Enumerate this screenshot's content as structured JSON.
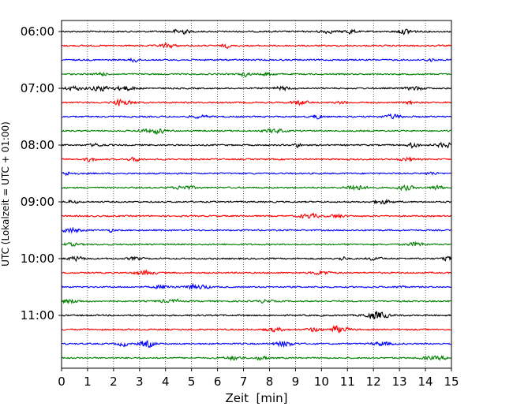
{
  "chart_data": {
    "type": "line",
    "xlabel": "Zeit  [min]",
    "ylabel": "UTC (Lokalzeit = UTC + 01:00)",
    "xlim": [
      0,
      15
    ],
    "x_ticks": [
      "0",
      "1",
      "2",
      "3",
      "4",
      "5",
      "6",
      "7",
      "8",
      "9",
      "10",
      "11",
      "12",
      "13",
      "14",
      "15"
    ],
    "y_ticks": [
      "06:00",
      "07:00",
      "08:00",
      "09:00",
      "10:00",
      "11:00"
    ],
    "grid": "vertical dotted",
    "trace_start": "06:00",
    "trace_interval_min": 15,
    "trace_count": 24,
    "trace_colors": [
      "#000000",
      "#ff0000",
      "#0000ff",
      "#008000"
    ],
    "trace_description": "seismogram helicorder traces, one per 15-minute interval, colors cycling black, red, blue, green"
  }
}
